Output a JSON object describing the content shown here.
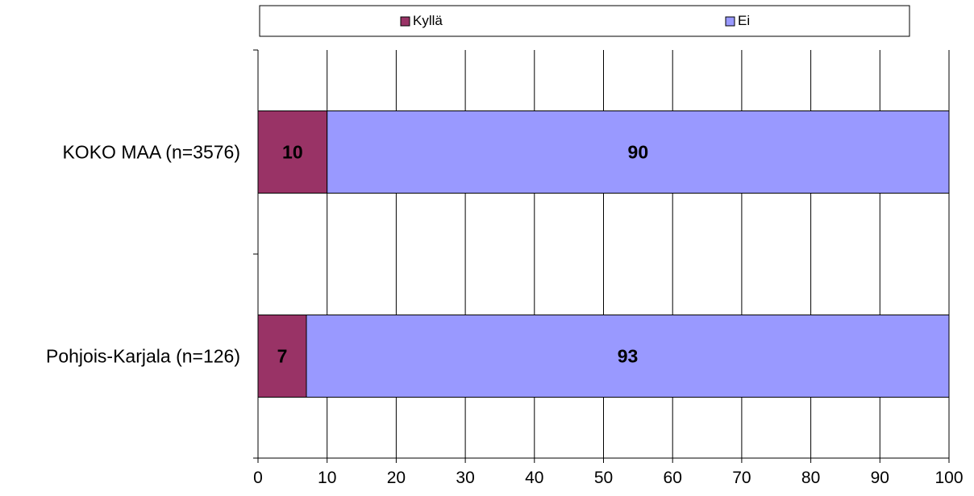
{
  "chart_data": {
    "type": "bar",
    "orientation": "horizontal",
    "stacked": true,
    "categories": [
      "KOKO MAA (n=3576)",
      "Pohjois-Karjala (n=126)"
    ],
    "series": [
      {
        "name": "Kyllä",
        "values": [
          10,
          7
        ],
        "color": "#993366"
      },
      {
        "name": "Ei",
        "values": [
          90,
          93
        ],
        "color": "#9999ff"
      }
    ],
    "xlim": [
      0,
      100
    ],
    "xticks": [
      "0",
      "10",
      "20",
      "30",
      "40",
      "50",
      "60",
      "70",
      "80",
      "90",
      "100"
    ],
    "grid": true,
    "legend_position": "top"
  }
}
